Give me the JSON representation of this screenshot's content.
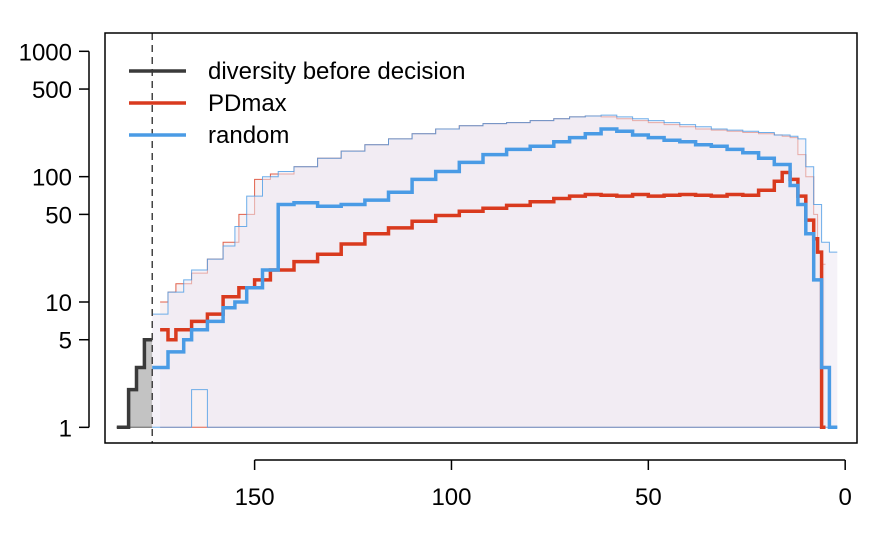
{
  "chart_data": {
    "type": "line",
    "title": "",
    "xlabel": "",
    "ylabel": "",
    "x_reversed": true,
    "xlim": [
      188,
      -3
    ],
    "ylim": [
      0.75,
      1400
    ],
    "y_scale": "log",
    "x_ticks": [
      150,
      100,
      50,
      0
    ],
    "x_tick_labels": [
      "150",
      "100",
      "50",
      "0"
    ],
    "y_ticks": [
      1,
      5,
      10,
      50,
      100,
      500,
      1000
    ],
    "y_tick_labels": [
      "1",
      "5",
      "10",
      "50",
      "100",
      "500",
      "1000"
    ],
    "decision_line_x": 176,
    "legend_position": "top-left",
    "legend": [
      {
        "label": "diversity before decision",
        "color": "#3a3a3a"
      },
      {
        "label": "PDmax",
        "color": "#d93a1e"
      },
      {
        "label": "random",
        "color": "#4a9be5"
      }
    ],
    "series": [
      {
        "name": "diversity before decision",
        "color": "#3a3a3a",
        "x": [
          185,
          182,
          180,
          178,
          176
        ],
        "y": [
          1,
          2,
          3,
          5,
          5
        ],
        "band": {
          "low": [
            1,
            1,
            1,
            1,
            1
          ],
          "high": [
            1,
            2,
            3,
            5,
            5
          ]
        }
      },
      {
        "name": "PDmax",
        "color": "#d93a1e",
        "x": [
          174,
          172,
          170,
          166,
          162,
          158,
          154,
          150,
          146,
          140,
          134,
          128,
          122,
          116,
          110,
          104,
          98,
          92,
          86,
          80,
          74,
          70,
          66,
          62,
          58,
          54,
          50,
          46,
          42,
          38,
          34,
          30,
          26,
          22,
          18,
          16,
          14,
          12,
          10,
          8,
          7,
          6,
          5
        ],
        "y": [
          6,
          5,
          6,
          7,
          8,
          11,
          13,
          15,
          18,
          21,
          24,
          29,
          35,
          39,
          44,
          49,
          53,
          56,
          59,
          63,
          67,
          70,
          72,
          71,
          70,
          72,
          70,
          71,
          72,
          71,
          70,
          72,
          71,
          78,
          92,
          108,
          95,
          70,
          45,
          32,
          25,
          1,
          1
        ],
        "band": {
          "low": [
            1,
            1,
            1,
            1,
            1,
            1,
            1,
            1,
            1,
            1,
            1,
            1,
            1,
            1,
            1,
            1,
            1,
            1,
            1,
            1,
            1,
            1,
            1,
            1,
            1,
            1,
            1,
            1,
            1,
            1,
            1,
            1,
            1,
            1,
            1,
            1,
            1,
            1,
            1,
            1,
            1,
            1,
            1
          ],
          "high": [
            10,
            12,
            14,
            17,
            22,
            30,
            50,
            95,
            105,
            120,
            140,
            160,
            180,
            200,
            220,
            240,
            255,
            265,
            270,
            280,
            290,
            300,
            305,
            300,
            290,
            280,
            270,
            260,
            250,
            240,
            235,
            230,
            225,
            220,
            215,
            210,
            205,
            150,
            100,
            50,
            25,
            20,
            20
          ]
        }
      },
      {
        "name": "random",
        "color": "#4a9be5",
        "x": [
          176,
          172,
          168,
          166,
          162,
          158,
          155,
          152,
          148,
          144,
          140,
          134,
          128,
          122,
          116,
          110,
          104,
          98,
          92,
          86,
          80,
          74,
          70,
          66,
          62,
          58,
          54,
          50,
          46,
          42,
          38,
          34,
          30,
          26,
          22,
          18,
          14,
          12,
          10,
          8,
          6,
          4,
          2
        ],
        "y": [
          3,
          4,
          5,
          6,
          7,
          9,
          10,
          13,
          18,
          60,
          62,
          58,
          60,
          65,
          75,
          95,
          110,
          130,
          150,
          165,
          175,
          190,
          205,
          220,
          240,
          230,
          215,
          205,
          195,
          190,
          180,
          175,
          165,
          155,
          140,
          125,
          85,
          60,
          35,
          15,
          3,
          1,
          1
        ],
        "band": {
          "low": [
            1,
            1,
            1,
            2,
            1,
            1,
            1,
            1,
            1,
            1,
            1,
            1,
            1,
            1,
            1,
            1,
            1,
            1,
            1,
            1,
            1,
            1,
            1,
            1,
            1,
            1,
            1,
            1,
            1,
            1,
            1,
            1,
            1,
            1,
            1,
            1,
            1,
            1,
            1,
            1,
            1,
            1,
            1
          ],
          "high": [
            8,
            12,
            15,
            18,
            22,
            28,
            40,
            70,
            100,
            110,
            120,
            140,
            160,
            180,
            200,
            220,
            240,
            255,
            265,
            270,
            280,
            290,
            300,
            305,
            310,
            300,
            290,
            280,
            270,
            260,
            250,
            240,
            235,
            230,
            225,
            215,
            210,
            200,
            120,
            60,
            30,
            25,
            25
          ]
        }
      }
    ]
  }
}
